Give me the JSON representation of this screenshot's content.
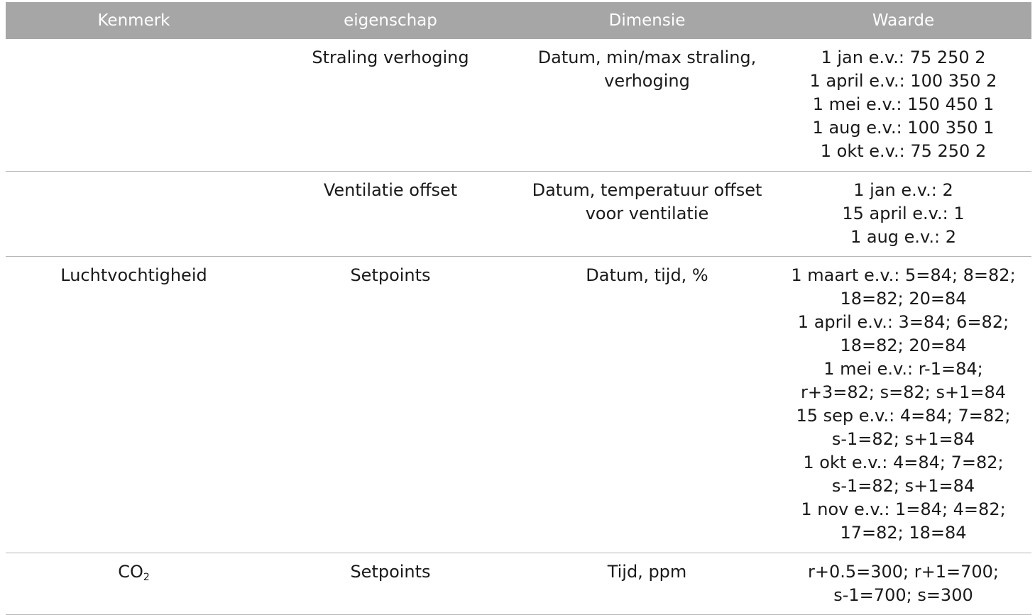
{
  "header": {
    "kenmerk": "Kenmerk",
    "eigenschap": "eigenschap",
    "dimensie": "Dimensie",
    "waarde": "Waarde"
  },
  "rows": [
    {
      "kenmerk": "",
      "eigenschap": "Straling verhoging",
      "dimensie": [
        "Datum, min/max straling,",
        "verhoging"
      ],
      "waarde": [
        "1 jan e.v.: 75 250 2",
        "1 april e.v.: 100 350 2",
        "1 mei e.v.: 150 450 1",
        "1 aug e.v.: 100 350 1",
        "1 okt e.v.: 75 250 2"
      ]
    },
    {
      "kenmerk": "",
      "eigenschap": "Ventilatie offset",
      "dimensie": [
        "Datum, temperatuur offset",
        "voor ventilatie"
      ],
      "waarde": [
        "1 jan e.v.: 2",
        "15 april e.v.: 1",
        "1 aug e.v.: 2"
      ]
    },
    {
      "kenmerk": "Luchtvochtigheid",
      "eigenschap": "Setpoints",
      "dimensie": [
        "Datum, tijd, %"
      ],
      "waarde": [
        "1 maart e.v.: 5=84; 8=82;",
        "18=82; 20=84",
        "1 april e.v.: 3=84; 6=82;",
        "18=82; 20=84",
        "1 mei e.v.: r-1=84;",
        "r+3=82; s=82; s+1=84",
        "15 sep e.v.: 4=84; 7=82;",
        "s-1=82; s+1=84",
        "1 okt e.v.: 4=84; 7=82;",
        "s-1=82; s+1=84",
        "1 nov e.v.: 1=84; 4=82;",
        "17=82; 18=84"
      ]
    },
    {
      "kenmerk_main": "CO",
      "kenmerk_sub": "2",
      "eigenschap": "Setpoints",
      "dimensie": [
        "Tijd, ppm"
      ],
      "waarde": [
        "r+0.5=300; r+1=700;",
        "s-1=700; s=300"
      ]
    }
  ]
}
